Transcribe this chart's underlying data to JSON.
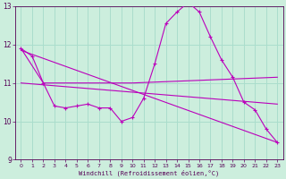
{
  "xlabel": "Windchill (Refroidissement éolien,°C)",
  "xlim": [
    -0.5,
    23.5
  ],
  "ylim": [
    9,
    13
  ],
  "yticks": [
    9,
    10,
    11,
    12,
    13
  ],
  "xticks": [
    0,
    1,
    2,
    3,
    4,
    5,
    6,
    7,
    8,
    9,
    10,
    11,
    12,
    13,
    14,
    15,
    16,
    17,
    18,
    19,
    20,
    21,
    22,
    23
  ],
  "bg_color": "#cceedd",
  "line_color": "#bb00bb",
  "grid_color": "#aaddcc",
  "lines": [
    {
      "x": [
        0,
        1,
        2,
        3,
        4,
        5,
        6,
        7,
        8,
        9,
        10,
        11,
        12,
        13,
        14,
        15,
        16,
        17,
        18,
        19,
        20,
        21,
        22,
        23
      ],
      "y": [
        11.9,
        11.7,
        11.0,
        10.4,
        10.35,
        10.4,
        10.45,
        10.35,
        10.35,
        10.0,
        10.1,
        10.6,
        11.5,
        12.55,
        12.85,
        13.1,
        12.85,
        12.2,
        11.6,
        11.15,
        10.5,
        10.3,
        9.8,
        9.45
      ],
      "has_markers": true
    },
    {
      "x": [
        0,
        2,
        10,
        23
      ],
      "y": [
        11.9,
        11.0,
        11.0,
        11.15
      ],
      "has_markers": false
    },
    {
      "x": [
        0,
        23
      ],
      "y": [
        11.85,
        9.45
      ],
      "has_markers": false
    },
    {
      "x": [
        0,
        23
      ],
      "y": [
        11.0,
        10.45
      ],
      "has_markers": false
    }
  ]
}
